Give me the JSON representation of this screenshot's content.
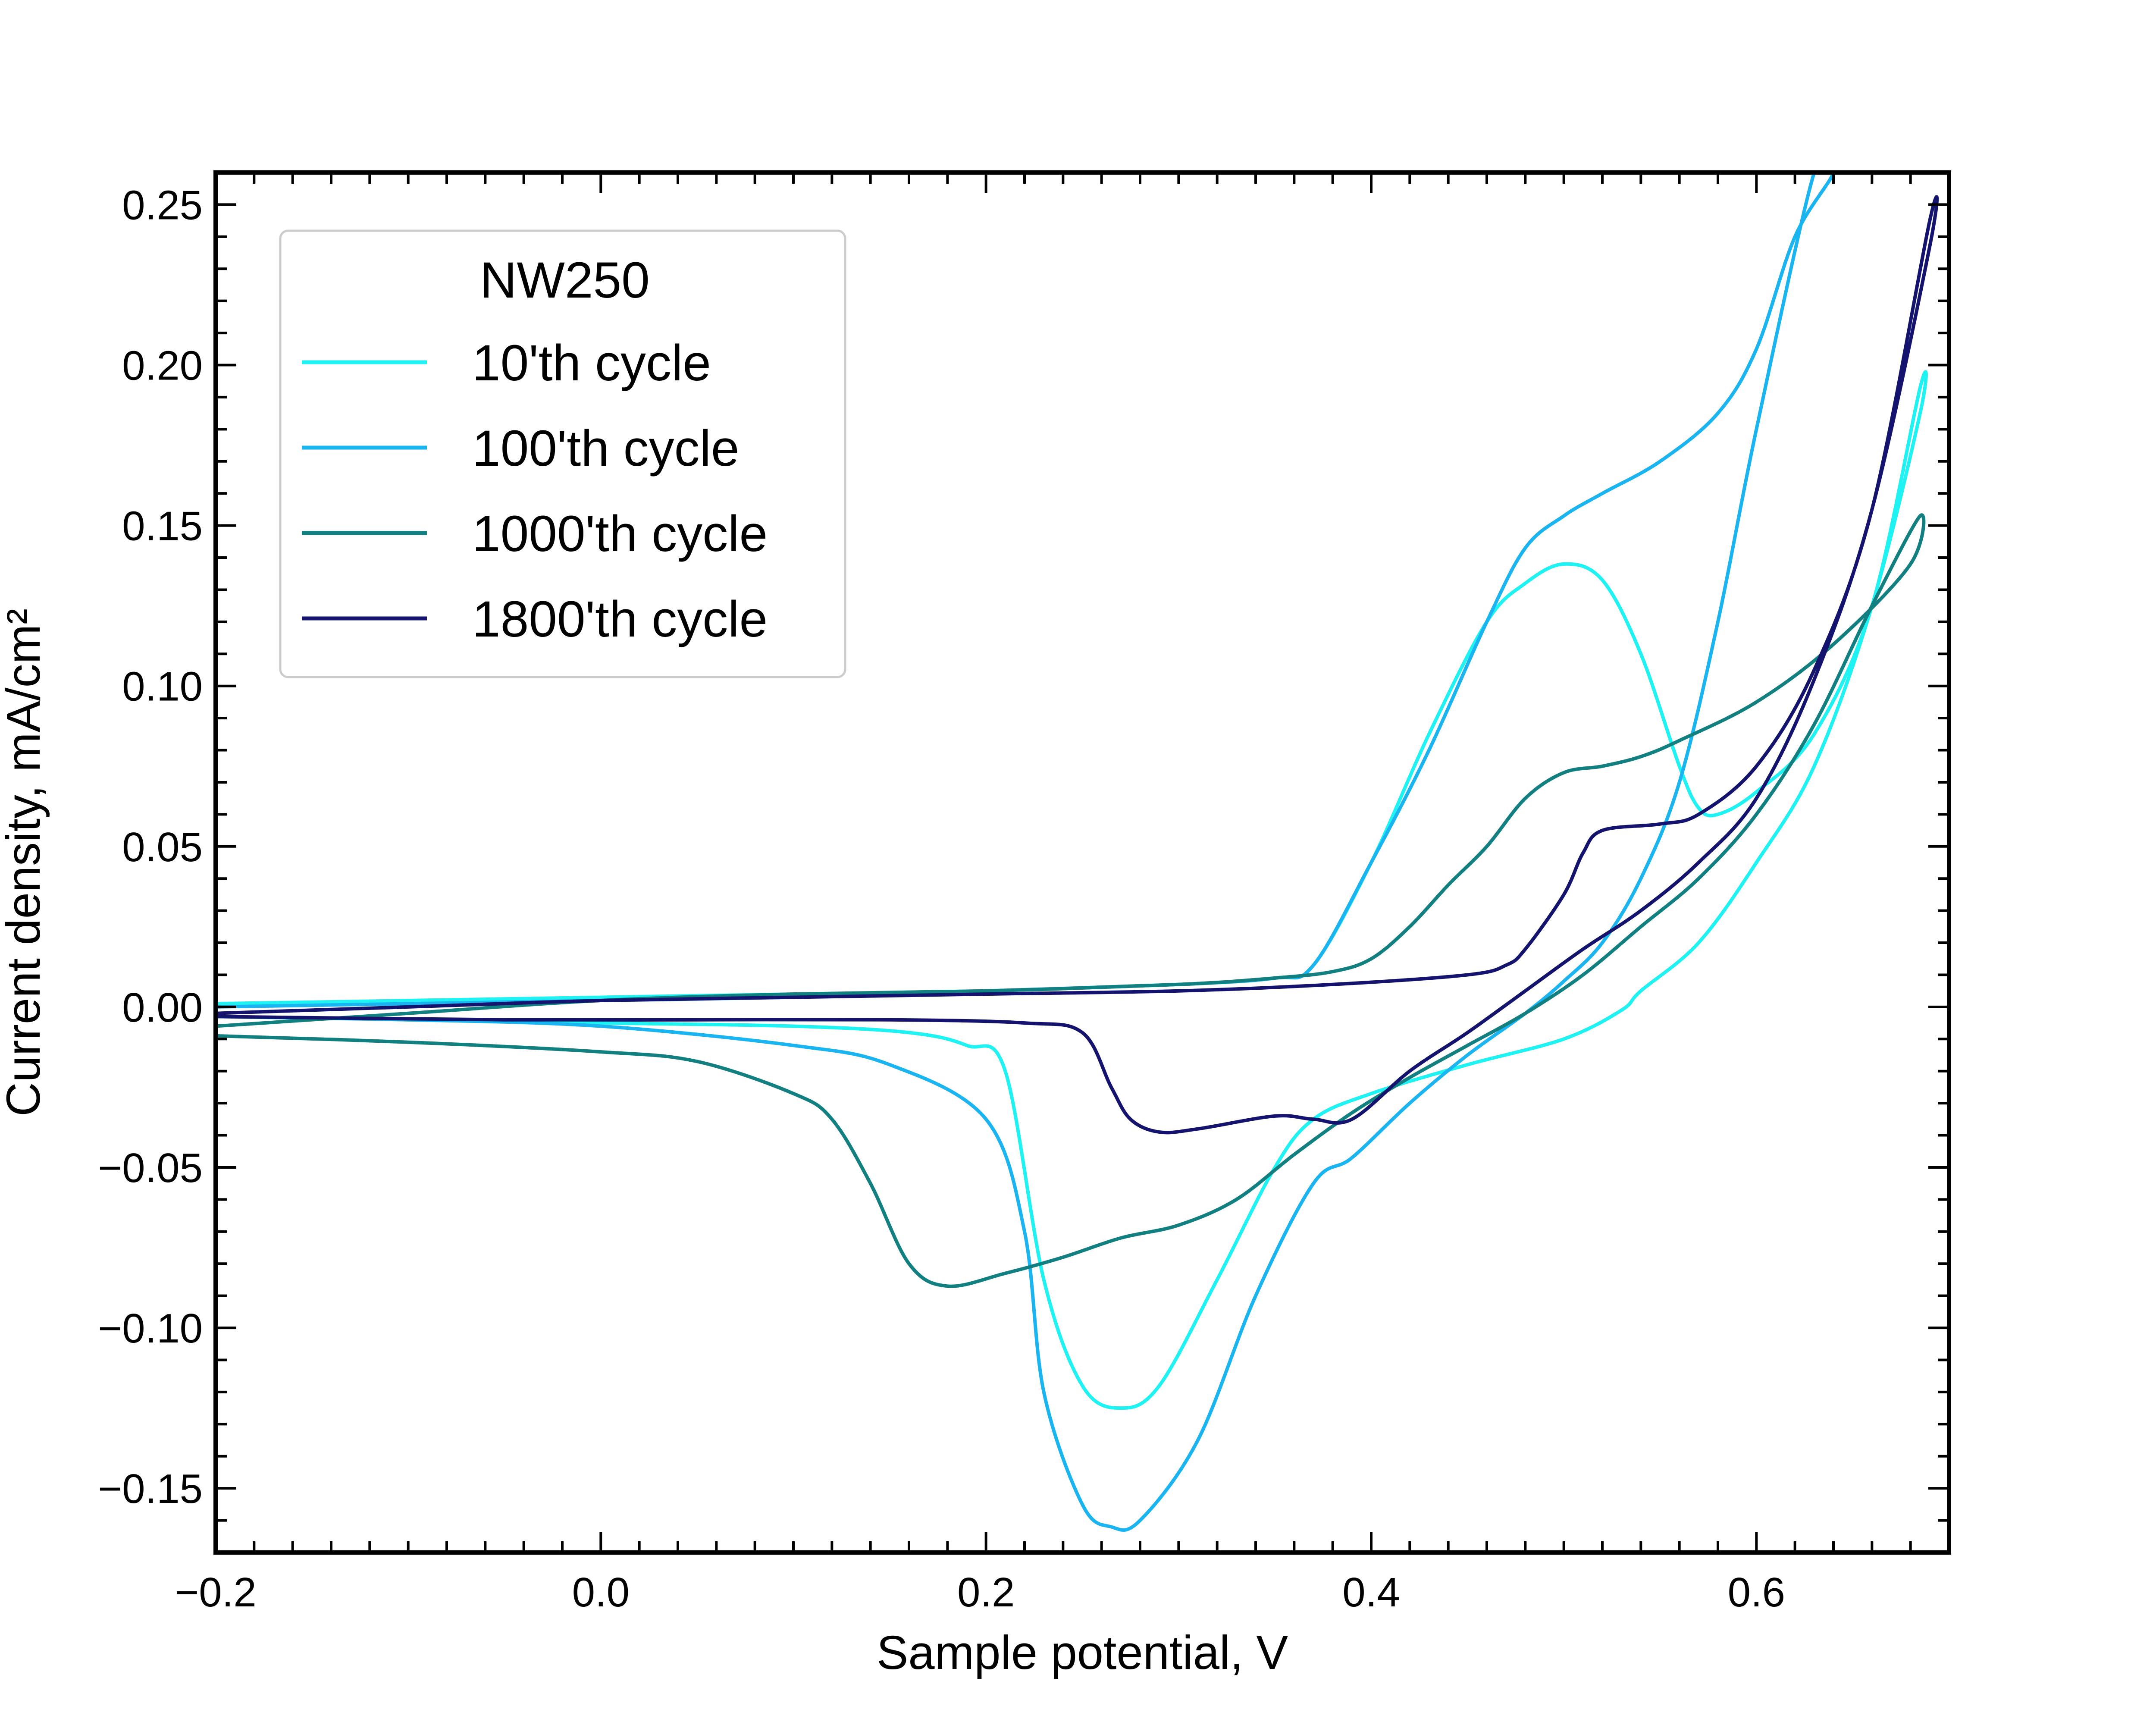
{
  "chart_data": {
    "type": "line",
    "xlabel": "Sample potential, V",
    "ylabel": "Current density, mA/cm²",
    "xlim": [
      -0.2,
      0.7
    ],
    "ylim": [
      -0.17,
      0.26
    ],
    "x_ticks": [
      -0.2,
      0.0,
      0.2,
      0.4,
      0.6
    ],
    "x_tick_labels": [
      "−0.2",
      "0.0",
      "0.2",
      "0.4",
      "0.6"
    ],
    "y_ticks": [
      -0.15,
      -0.1,
      -0.05,
      0.0,
      0.05,
      0.1,
      0.15,
      0.2,
      0.25
    ],
    "y_tick_labels": [
      "−0.15",
      "−0.10",
      "−0.05",
      "0.00",
      "0.05",
      "0.10",
      "0.15",
      "0.20",
      "0.25"
    ],
    "grid": false,
    "legend": {
      "title": "NW250",
      "position": "top-left"
    },
    "series": [
      {
        "name": "10'th cycle",
        "color": "#1ef2f2",
        "x": [
          -0.2,
          -0.1,
          0.0,
          0.1,
          0.2,
          0.3,
          0.35,
          0.37,
          0.4,
          0.43,
          0.46,
          0.48,
          0.5,
          0.52,
          0.54,
          0.56,
          0.57,
          0.58,
          0.6,
          0.63,
          0.66,
          0.685,
          0.685,
          0.66,
          0.63,
          0.6,
          0.57,
          0.54,
          0.53,
          0.5,
          0.45,
          0.4,
          0.37,
          0.35,
          0.32,
          0.29,
          0.27,
          0.25,
          0.23,
          0.21,
          0.19,
          0.16,
          0.1,
          0.0,
          -0.1,
          -0.2
        ],
        "y": [
          0.001,
          0.002,
          0.003,
          0.004,
          0.005,
          0.007,
          0.009,
          0.013,
          0.045,
          0.085,
          0.12,
          0.132,
          0.138,
          0.133,
          0.11,
          0.075,
          0.062,
          0.06,
          0.067,
          0.085,
          0.125,
          0.193,
          0.185,
          0.125,
          0.075,
          0.045,
          0.02,
          0.005,
          -0.001,
          -0.01,
          -0.018,
          -0.027,
          -0.035,
          -0.05,
          -0.085,
          -0.118,
          -0.125,
          -0.118,
          -0.085,
          -0.02,
          -0.012,
          -0.008,
          -0.006,
          -0.005,
          -0.004,
          -0.003
        ]
      },
      {
        "name": "100'th cycle",
        "color": "#1ab5f0",
        "x": [
          -0.2,
          -0.1,
          0.0,
          0.1,
          0.2,
          0.3,
          0.35,
          0.37,
          0.4,
          0.43,
          0.46,
          0.48,
          0.5,
          0.52,
          0.55,
          0.58,
          0.6,
          0.62,
          0.64,
          0.63,
          0.6,
          0.58,
          0.56,
          0.54,
          0.52,
          0.5,
          0.48,
          0.45,
          0.42,
          0.39,
          0.37,
          0.34,
          0.31,
          0.28,
          0.265,
          0.25,
          0.23,
          0.22,
          0.2,
          0.15,
          0.1,
          0.0,
          -0.1,
          -0.2
        ],
        "y": [
          0.0,
          0.001,
          0.002,
          0.003,
          0.005,
          0.007,
          0.009,
          0.013,
          0.045,
          0.08,
          0.12,
          0.143,
          0.153,
          0.16,
          0.17,
          0.185,
          0.205,
          0.24,
          0.26,
          0.26,
          0.18,
          0.12,
          0.07,
          0.04,
          0.02,
          0.008,
          -0.002,
          -0.015,
          -0.03,
          -0.047,
          -0.055,
          -0.09,
          -0.135,
          -0.16,
          -0.162,
          -0.155,
          -0.12,
          -0.07,
          -0.035,
          -0.018,
          -0.012,
          -0.006,
          -0.004,
          -0.003
        ]
      },
      {
        "name": "1000'th cycle",
        "color": "#128080",
        "x": [
          -0.2,
          -0.1,
          0.0,
          0.1,
          0.2,
          0.3,
          0.35,
          0.38,
          0.4,
          0.42,
          0.44,
          0.46,
          0.48,
          0.5,
          0.52,
          0.54,
          0.56,
          0.6,
          0.64,
          0.68,
          0.685,
          0.66,
          0.63,
          0.6,
          0.57,
          0.54,
          0.51,
          0.48,
          0.45,
          0.42,
          0.39,
          0.36,
          0.33,
          0.3,
          0.27,
          0.24,
          0.21,
          0.18,
          0.16,
          0.14,
          0.12,
          0.1,
          0.05,
          0.0,
          -0.1,
          -0.2
        ],
        "y": [
          -0.006,
          -0.002,
          0.002,
          0.004,
          0.005,
          0.007,
          0.009,
          0.011,
          0.015,
          0.025,
          0.038,
          0.05,
          0.065,
          0.073,
          0.075,
          0.078,
          0.083,
          0.095,
          0.113,
          0.138,
          0.153,
          0.125,
          0.088,
          0.06,
          0.04,
          0.025,
          0.01,
          -0.002,
          -0.012,
          -0.022,
          -0.033,
          -0.046,
          -0.06,
          -0.068,
          -0.072,
          -0.078,
          -0.083,
          -0.087,
          -0.08,
          -0.055,
          -0.035,
          -0.027,
          -0.017,
          -0.014,
          -0.011,
          -0.009
        ]
      },
      {
        "name": "1800'th cycle",
        "color": "#14146e",
        "x": [
          -0.2,
          -0.1,
          0.0,
          0.1,
          0.2,
          0.3,
          0.38,
          0.45,
          0.47,
          0.48,
          0.5,
          0.51,
          0.52,
          0.55,
          0.57,
          0.6,
          0.63,
          0.66,
          0.69,
          0.69,
          0.66,
          0.63,
          0.6,
          0.57,
          0.54,
          0.51,
          0.48,
          0.45,
          0.42,
          0.39,
          0.37,
          0.35,
          0.31,
          0.29,
          0.275,
          0.265,
          0.25,
          0.22,
          0.15,
          0.05,
          -0.05,
          -0.2
        ],
        "y": [
          -0.002,
          0.0,
          0.002,
          0.003,
          0.004,
          0.005,
          0.007,
          0.01,
          0.013,
          0.018,
          0.035,
          0.048,
          0.055,
          0.057,
          0.06,
          0.075,
          0.105,
          0.155,
          0.245,
          0.237,
          0.155,
          0.102,
          0.065,
          0.045,
          0.03,
          0.018,
          0.005,
          -0.008,
          -0.02,
          -0.035,
          -0.035,
          -0.034,
          -0.038,
          -0.039,
          -0.035,
          -0.025,
          -0.008,
          -0.005,
          -0.004,
          -0.004,
          -0.004,
          -0.003
        ]
      }
    ]
  }
}
